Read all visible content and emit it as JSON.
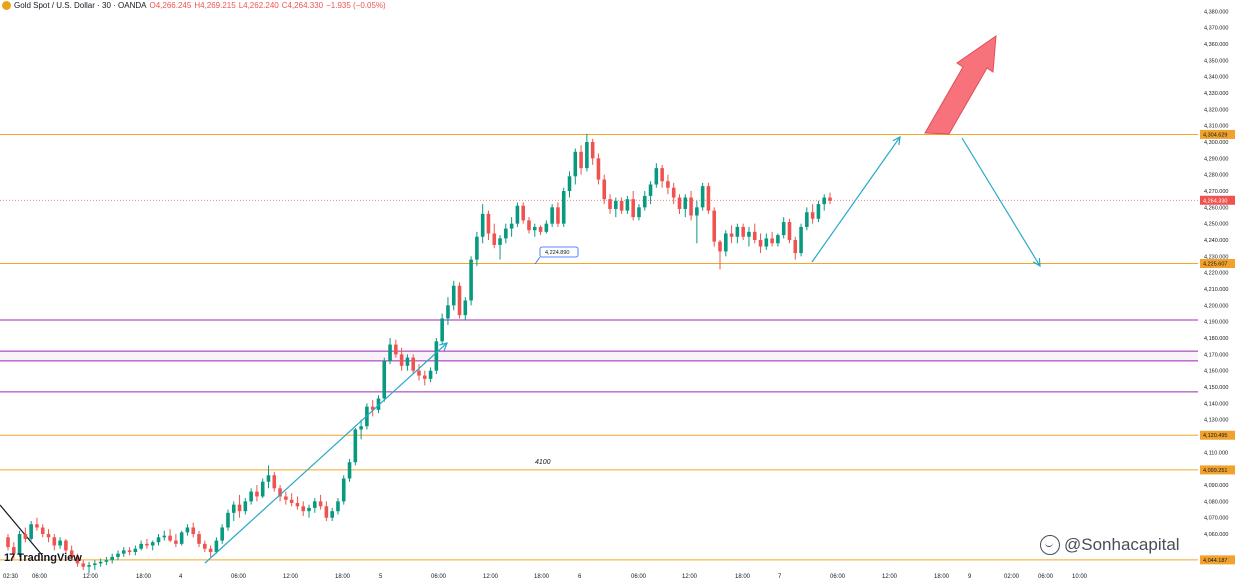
{
  "header": {
    "symbol": "Gold Spot / U.S. Dollar · 30 · OANDA",
    "open": "O4,266.245",
    "high": "H4,269.215",
    "low": "L4,262.240",
    "close": "C4,264.330",
    "change": "−1.935 (−0.05%)"
  },
  "branding": {
    "logo_text": "TradingView",
    "watermark": "@Sonhacapital"
  },
  "colors": {
    "up": "#089981",
    "down": "#ef5350",
    "orange_line": "#f5a623",
    "purple_line": "#9c27b0",
    "projection": "#26a9c8",
    "arrow": "#f7727a",
    "axis_text": "#131722",
    "price_tag": "#f0a22c",
    "current_tag": "#ef5350"
  },
  "chart_data": {
    "type": "candlestick",
    "title": "Gold Spot / U.S. Dollar · 30 · OANDA",
    "y_axis": {
      "range": [
        4040,
        4385
      ],
      "ticks": [
        4060,
        4070,
        4080,
        4090,
        4100,
        4110,
        4130,
        4140,
        4150,
        4160,
        4170,
        4180,
        4190,
        4200,
        4210,
        4220,
        4230,
        4240,
        4250,
        4260,
        4270,
        4280,
        4290,
        4300,
        4310,
        4320,
        4330,
        4340,
        4350,
        4360,
        4370,
        4380
      ],
      "tick_labels": [
        "4,060.000",
        "4,070.000",
        "4,080.000",
        "4,090.000",
        "4,100.000",
        "4,110.000",
        "4,130.000",
        "4,140.000",
        "4,150.000",
        "4,160.000",
        "4,170.000",
        "4,180.000",
        "4,190.000",
        "4,200.000",
        "4,210.000",
        "4,220.000",
        "4,230.000",
        "4,240.000",
        "4,250.000",
        "4,260.000",
        "4,270.000",
        "4,280.000",
        "4,290.000",
        "4,300.000",
        "4,310.000",
        "4,320.000",
        "4,330.000",
        "4,340.000",
        "4,350.000",
        "4,360.000",
        "4,370.000",
        "4,380.000"
      ]
    },
    "x_axis": {
      "labels": [
        "02:30",
        "06:00",
        "12:00",
        "18:00",
        "4",
        "06:00",
        "12:00",
        "18:00",
        "5",
        "06:00",
        "12:00",
        "18:00",
        "6",
        "06:00",
        "12:00",
        "18:00",
        "7",
        "06:00",
        "12:00",
        "18:00",
        "9",
        "02:00",
        "06:00",
        "10:00"
      ]
    },
    "price_levels": [
      {
        "value": 4304.629,
        "label": "4,304.629",
        "kind": "resistance"
      },
      {
        "value": 4225.607,
        "label": "4,225.607",
        "kind": "support"
      },
      {
        "value": 4120.495,
        "label": "4,120.495",
        "kind": "support"
      },
      {
        "value": 4099.251,
        "label": "4,099.251",
        "kind": "support"
      },
      {
        "value": 4044.187,
        "label": "4,044.187",
        "kind": "support"
      }
    ],
    "purple_levels": [
      4191,
      4172,
      4166,
      4147
    ],
    "current_price": {
      "value": 4264.33,
      "label": "4,264.330"
    },
    "annotations": [
      {
        "text": "4,224.890",
        "value": 4224.89
      },
      {
        "text": "4100",
        "value": 4100
      }
    ],
    "candles": [
      [
        4058,
        4060,
        4050,
        4052
      ],
      [
        4052,
        4055,
        4045,
        4048
      ],
      [
        4048,
        4062,
        4046,
        4060
      ],
      [
        4060,
        4064,
        4055,
        4057
      ],
      [
        4057,
        4068,
        4056,
        4066
      ],
      [
        4066,
        4070,
        4062,
        4064
      ],
      [
        4064,
        4066,
        4058,
        4060
      ],
      [
        4060,
        4063,
        4055,
        4058
      ],
      [
        4058,
        4060,
        4050,
        4053
      ],
      [
        4053,
        4058,
        4051,
        4056
      ],
      [
        4056,
        4057,
        4048,
        4050
      ],
      [
        4050,
        4053,
        4044,
        4046
      ],
      [
        4046,
        4048,
        4040,
        4042
      ],
      [
        4042,
        4044,
        4038,
        4040
      ],
      [
        4040,
        4043,
        4036,
        4041
      ],
      [
        4041,
        4044,
        4038,
        4042
      ],
      [
        4042,
        4045,
        4040,
        4043
      ],
      [
        4043,
        4046,
        4041,
        4044
      ],
      [
        4044,
        4048,
        4042,
        4046
      ],
      [
        4046,
        4050,
        4044,
        4048
      ],
      [
        4048,
        4052,
        4046,
        4050
      ],
      [
        4050,
        4052,
        4047,
        4049
      ],
      [
        4049,
        4053,
        4047,
        4051
      ],
      [
        4051,
        4056,
        4050,
        4054
      ],
      [
        4054,
        4057,
        4051,
        4053
      ],
      [
        4053,
        4056,
        4050,
        4055
      ],
      [
        4055,
        4060,
        4053,
        4058
      ],
      [
        4058,
        4062,
        4056,
        4059
      ],
      [
        4059,
        4063,
        4055,
        4056
      ],
      [
        4056,
        4060,
        4052,
        4054
      ],
      [
        4054,
        4062,
        4053,
        4061
      ],
      [
        4061,
        4066,
        4059,
        4064
      ],
      [
        4064,
        4067,
        4058,
        4060
      ],
      [
        4060,
        4062,
        4052,
        4054
      ],
      [
        4054,
        4056,
        4049,
        4051
      ],
      [
        4051,
        4053,
        4046,
        4049
      ],
      [
        4049,
        4058,
        4048,
        4056
      ],
      [
        4056,
        4066,
        4054,
        4064
      ],
      [
        4064,
        4075,
        4062,
        4073
      ],
      [
        4073,
        4080,
        4068,
        4078
      ],
      [
        4078,
        4084,
        4070,
        4074
      ],
      [
        4074,
        4082,
        4072,
        4080
      ],
      [
        4080,
        4088,
        4078,
        4086
      ],
      [
        4086,
        4090,
        4080,
        4083
      ],
      [
        4083,
        4094,
        4082,
        4092
      ],
      [
        4092,
        4102,
        4088,
        4096
      ],
      [
        4096,
        4098,
        4086,
        4088
      ],
      [
        4088,
        4090,
        4080,
        4083
      ],
      [
        4083,
        4086,
        4078,
        4081
      ],
      [
        4081,
        4085,
        4077,
        4079
      ],
      [
        4079,
        4083,
        4075,
        4077
      ],
      [
        4077,
        4080,
        4071,
        4074
      ],
      [
        4074,
        4078,
        4070,
        4076
      ],
      [
        4076,
        4082,
        4073,
        4080
      ],
      [
        4080,
        4084,
        4075,
        4077
      ],
      [
        4077,
        4080,
        4068,
        4070
      ],
      [
        4070,
        4076,
        4068,
        4074
      ],
      [
        4074,
        4082,
        4072,
        4080
      ],
      [
        4080,
        4096,
        4078,
        4094
      ],
      [
        4094,
        4106,
        4092,
        4104
      ],
      [
        4104,
        4125,
        4102,
        4124
      ],
      [
        4124,
        4130,
        4118,
        4126
      ],
      [
        4126,
        4140,
        4124,
        4138
      ],
      [
        4138,
        4142,
        4132,
        4136
      ],
      [
        4136,
        4145,
        4134,
        4143
      ],
      [
        4143,
        4168,
        4141,
        4166
      ],
      [
        4166,
        4180,
        4164,
        4176
      ],
      [
        4176,
        4179,
        4168,
        4170
      ],
      [
        4170,
        4174,
        4160,
        4163
      ],
      [
        4163,
        4170,
        4160,
        4168
      ],
      [
        4168,
        4170,
        4158,
        4160
      ],
      [
        4160,
        4164,
        4154,
        4157
      ],
      [
        4157,
        4160,
        4151,
        4155
      ],
      [
        4155,
        4162,
        4153,
        4160
      ],
      [
        4160,
        4180,
        4158,
        4178
      ],
      [
        4178,
        4195,
        4176,
        4192
      ],
      [
        4192,
        4205,
        4188,
        4200
      ],
      [
        4200,
        4215,
        4197,
        4212
      ],
      [
        4212,
        4214,
        4192,
        4194
      ],
      [
        4194,
        4205,
        4191,
        4203
      ],
      [
        4203,
        4230,
        4200,
        4228
      ],
      [
        4228,
        4245,
        4224,
        4242
      ],
      [
        4242,
        4262,
        4238,
        4256
      ],
      [
        4256,
        4258,
        4240,
        4244
      ],
      [
        4244,
        4250,
        4235,
        4237
      ],
      [
        4237,
        4243,
        4228,
        4241
      ],
      [
        4241,
        4250,
        4238,
        4247
      ],
      [
        4247,
        4254,
        4242,
        4250
      ],
      [
        4250,
        4263,
        4248,
        4261
      ],
      [
        4261,
        4263,
        4250,
        4252
      ],
      [
        4252,
        4254,
        4244,
        4246
      ],
      [
        4246,
        4250,
        4242,
        4248
      ],
      [
        4248,
        4249,
        4243,
        4245
      ],
      [
        4245,
        4252,
        4244,
        4250
      ],
      [
        4250,
        4262,
        4248,
        4260
      ],
      [
        4260,
        4263,
        4248,
        4250
      ],
      [
        4250,
        4272,
        4248,
        4270
      ],
      [
        4270,
        4282,
        4266,
        4279
      ],
      [
        4279,
        4296,
        4274,
        4294
      ],
      [
        4294,
        4298,
        4280,
        4284
      ],
      [
        4284,
        4305,
        4282,
        4300
      ],
      [
        4300,
        4302,
        4286,
        4290
      ],
      [
        4290,
        4293,
        4274,
        4277
      ],
      [
        4277,
        4280,
        4262,
        4265
      ],
      [
        4265,
        4268,
        4256,
        4259
      ],
      [
        4259,
        4266,
        4254,
        4264
      ],
      [
        4264,
        4266,
        4256,
        4258
      ],
      [
        4258,
        4267,
        4256,
        4265
      ],
      [
        4265,
        4270,
        4252,
        4254
      ],
      [
        4254,
        4262,
        4252,
        4260
      ],
      [
        4260,
        4270,
        4258,
        4267
      ],
      [
        4267,
        4276,
        4262,
        4274
      ],
      [
        4274,
        4287,
        4272,
        4284
      ],
      [
        4284,
        4286,
        4272,
        4276
      ],
      [
        4276,
        4280,
        4268,
        4272
      ],
      [
        4272,
        4275,
        4262,
        4266
      ],
      [
        4266,
        4268,
        4256,
        4259
      ],
      [
        4259,
        4268,
        4254,
        4266
      ],
      [
        4266,
        4270,
        4252,
        4255
      ],
      [
        4255,
        4264,
        4238,
        4260
      ],
      [
        4260,
        4275,
        4258,
        4273
      ],
      [
        4273,
        4275,
        4256,
        4258
      ],
      [
        4258,
        4260,
        4236,
        4239
      ],
      [
        4239,
        4240,
        4222,
        4233
      ],
      [
        4233,
        4246,
        4230,
        4244
      ],
      [
        4244,
        4249,
        4238,
        4242
      ],
      [
        4242,
        4250,
        4238,
        4248
      ],
      [
        4248,
        4250,
        4240,
        4242
      ],
      [
        4242,
        4248,
        4236,
        4245
      ],
      [
        4245,
        4250,
        4238,
        4240
      ],
      [
        4240,
        4244,
        4232,
        4236
      ],
      [
        4236,
        4244,
        4234,
        4241
      ],
      [
        4241,
        4245,
        4236,
        4238
      ],
      [
        4238,
        4244,
        4236,
        4243
      ],
      [
        4243,
        4254,
        4241,
        4251
      ],
      [
        4251,
        4253,
        4238,
        4240
      ],
      [
        4240,
        4242,
        4228,
        4232
      ],
      [
        4232,
        4250,
        4230,
        4248
      ],
      [
        4248,
        4260,
        4246,
        4257
      ],
      [
        4257,
        4262,
        4250,
        4253
      ],
      [
        4253,
        4264,
        4251,
        4262
      ],
      [
        4262,
        4268,
        4258,
        4266
      ],
      [
        4266,
        4269,
        4262,
        4264
      ]
    ]
  }
}
